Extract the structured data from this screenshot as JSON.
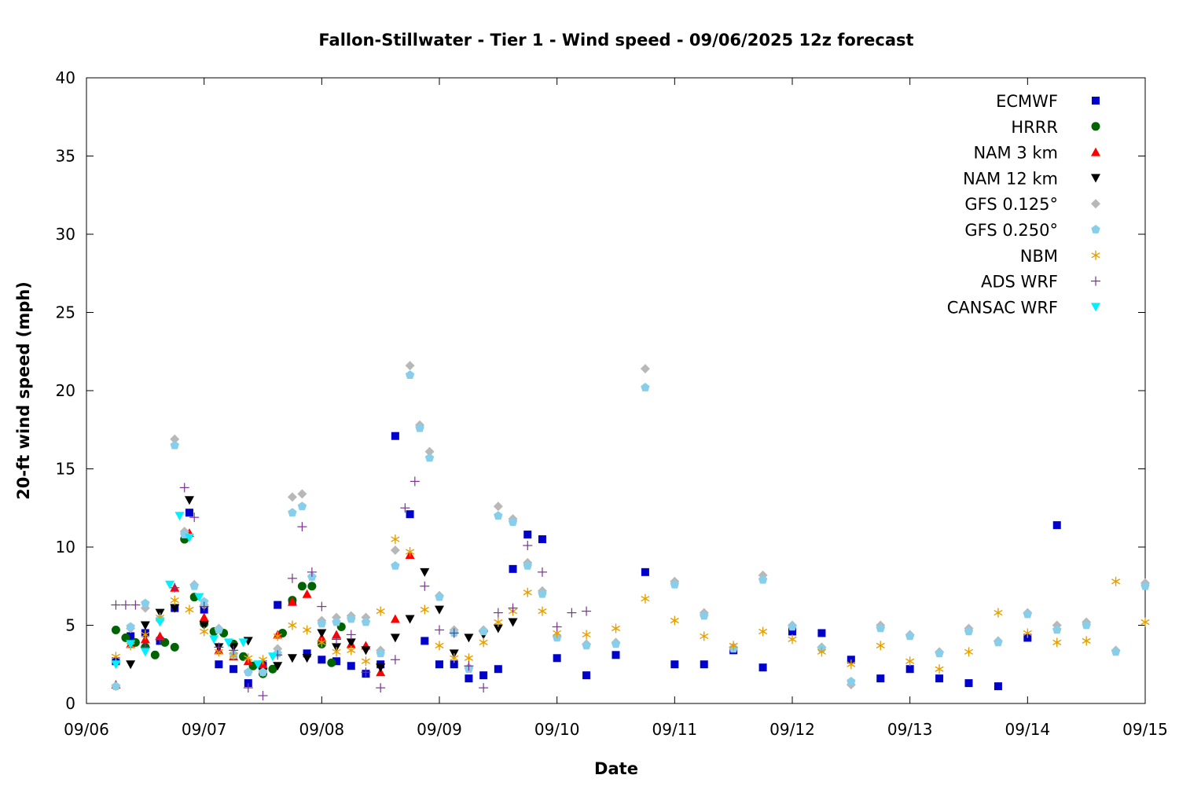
{
  "chart_data": {
    "type": "scatter",
    "title": "Fallon-Stillwater - Tier 1 - Wind speed - 09/06/2025 12z forecast",
    "xlabel": "Date",
    "ylabel": "20-ft wind speed (mph)",
    "xlim": [
      "2025-09-06T00:00",
      "2025-09-15T00:00"
    ],
    "ylim": [
      0,
      40
    ],
    "x_ticks": [
      "09/06",
      "09/07",
      "09/08",
      "09/09",
      "09/10",
      "09/11",
      "09/12",
      "09/13",
      "09/14",
      "09/15"
    ],
    "y_ticks": [
      0,
      5,
      10,
      15,
      20,
      25,
      30,
      35,
      40
    ],
    "grid": false,
    "legend_position": "top-right",
    "series": [
      {
        "name": "ECMWF",
        "marker": "square",
        "color": "#0000cc",
        "x": [
          "2025-09-06T06:00",
          "2025-09-06T09:00",
          "2025-09-06T12:00",
          "2025-09-06T15:00",
          "2025-09-06T18:00",
          "2025-09-06T21:00",
          "2025-09-07T00:00",
          "2025-09-07T03:00",
          "2025-09-07T06:00",
          "2025-09-07T09:00",
          "2025-09-07T12:00",
          "2025-09-07T15:00",
          "2025-09-07T18:00",
          "2025-09-07T21:00",
          "2025-09-08T00:00",
          "2025-09-08T03:00",
          "2025-09-08T06:00",
          "2025-09-08T09:00",
          "2025-09-08T12:00",
          "2025-09-08T15:00",
          "2025-09-08T18:00",
          "2025-09-08T21:00",
          "2025-09-09T00:00",
          "2025-09-09T03:00",
          "2025-09-09T06:00",
          "2025-09-09T09:00",
          "2025-09-09T12:00",
          "2025-09-09T15:00",
          "2025-09-09T18:00",
          "2025-09-09T21:00",
          "2025-09-10T00:00",
          "2025-09-10T06:00",
          "2025-09-10T12:00",
          "2025-09-10T18:00",
          "2025-09-11T00:00",
          "2025-09-11T06:00",
          "2025-09-11T12:00",
          "2025-09-11T18:00",
          "2025-09-12T00:00",
          "2025-09-12T06:00",
          "2025-09-12T12:00",
          "2025-09-12T18:00",
          "2025-09-13T00:00",
          "2025-09-13T06:00",
          "2025-09-13T12:00",
          "2025-09-13T18:00",
          "2025-09-14T00:00",
          "2025-09-14T06:00"
        ],
        "y": [
          2.7,
          4.3,
          4.5,
          4.0,
          6.1,
          12.2,
          6.0,
          2.5,
          2.2,
          1.3,
          2.5,
          6.3,
          6.5,
          3.2,
          2.8,
          2.7,
          2.4,
          1.9,
          2.5,
          17.1,
          12.1,
          4.0,
          2.5,
          2.5,
          1.6,
          1.8,
          2.2,
          8.6,
          10.8,
          10.5,
          2.9,
          1.8,
          3.1,
          8.4,
          2.5,
          2.5,
          3.4,
          2.3,
          4.6,
          4.5,
          2.8,
          1.6,
          2.2,
          1.6,
          1.3,
          1.1,
          4.2,
          11.4
        ]
      },
      {
        "name": "HRRR",
        "marker": "circle",
        "color": "#006400",
        "x": [
          "2025-09-06T06:00",
          "2025-09-06T08:00",
          "2025-09-06T10:00",
          "2025-09-06T12:00",
          "2025-09-06T14:00",
          "2025-09-06T16:00",
          "2025-09-06T18:00",
          "2025-09-06T20:00",
          "2025-09-06T22:00",
          "2025-09-07T00:00",
          "2025-09-07T02:00",
          "2025-09-07T04:00",
          "2025-09-07T06:00",
          "2025-09-07T08:00",
          "2025-09-07T10:00",
          "2025-09-07T12:00",
          "2025-09-07T14:00",
          "2025-09-07T16:00",
          "2025-09-07T18:00",
          "2025-09-07T20:00",
          "2025-09-07T22:00",
          "2025-09-08T00:00",
          "2025-09-08T02:00",
          "2025-09-08T04:00"
        ],
        "y": [
          4.7,
          4.2,
          3.9,
          3.6,
          3.1,
          3.9,
          3.6,
          10.5,
          6.8,
          5.1,
          4.6,
          4.5,
          3.8,
          3.0,
          2.4,
          1.9,
          2.2,
          4.5,
          6.6,
          7.5,
          7.5,
          3.8,
          2.6,
          4.9
        ]
      },
      {
        "name": "NAM 3 km",
        "marker": "triangle-up",
        "color": "#ff0000",
        "x": [
          "2025-09-06T06:00",
          "2025-09-06T09:00",
          "2025-09-06T12:00",
          "2025-09-06T15:00",
          "2025-09-06T18:00",
          "2025-09-06T21:00",
          "2025-09-07T00:00",
          "2025-09-07T03:00",
          "2025-09-07T06:00",
          "2025-09-07T09:00",
          "2025-09-07T12:00",
          "2025-09-07T15:00",
          "2025-09-07T18:00",
          "2025-09-07T21:00",
          "2025-09-08T00:00",
          "2025-09-08T03:00",
          "2025-09-08T06:00",
          "2025-09-08T09:00",
          "2025-09-08T12:00",
          "2025-09-08T15:00",
          "2025-09-08T18:00"
        ],
        "y": [
          1.2,
          3.8,
          4.1,
          4.3,
          7.4,
          10.9,
          5.5,
          3.4,
          3.0,
          2.7,
          2.5,
          4.4,
          6.5,
          7.0,
          4.2,
          4.4,
          3.8,
          3.7,
          2.0,
          5.4,
          9.5
        ]
      },
      {
        "name": "NAM 12 km",
        "marker": "triangle-down",
        "color": "#000000",
        "x": [
          "2025-09-06T09:00",
          "2025-09-06T12:00",
          "2025-09-06T15:00",
          "2025-09-06T18:00",
          "2025-09-06T21:00",
          "2025-09-07T00:00",
          "2025-09-07T03:00",
          "2025-09-07T06:00",
          "2025-09-07T09:00",
          "2025-09-07T12:00",
          "2025-09-07T15:00",
          "2025-09-07T18:00",
          "2025-09-07T21:00",
          "2025-09-08T00:00",
          "2025-09-08T03:00",
          "2025-09-08T06:00",
          "2025-09-08T09:00",
          "2025-09-08T12:00",
          "2025-09-08T15:00",
          "2025-09-08T18:00",
          "2025-09-08T21:00",
          "2025-09-09T00:00",
          "2025-09-09T03:00",
          "2025-09-09T06:00",
          "2025-09-09T09:00",
          "2025-09-09T12:00",
          "2025-09-09T15:00"
        ],
        "y": [
          2.5,
          5.0,
          5.8,
          6.1,
          13.0,
          5.0,
          3.6,
          3.6,
          4.0,
          2.0,
          2.4,
          2.9,
          2.9,
          4.5,
          3.6,
          3.9,
          3.4,
          2.3,
          4.2,
          5.4,
          8.4,
          6.0,
          3.2,
          4.2,
          4.4,
          4.8,
          5.2
        ]
      },
      {
        "name": "GFS 0.125°",
        "marker": "diamond",
        "color": "#b8b8b8",
        "x": [
          "2025-09-06T06:00",
          "2025-09-06T09:00",
          "2025-09-06T12:00",
          "2025-09-06T15:00",
          "2025-09-06T18:00",
          "2025-09-06T20:00",
          "2025-09-06T22:00",
          "2025-09-07T00:00",
          "2025-09-07T03:00",
          "2025-09-07T06:00",
          "2025-09-07T09:00",
          "2025-09-07T12:00",
          "2025-09-07T15:00",
          "2025-09-07T18:00",
          "2025-09-07T20:00",
          "2025-09-07T22:00",
          "2025-09-08T00:00",
          "2025-09-08T03:00",
          "2025-09-08T06:00",
          "2025-09-08T09:00",
          "2025-09-08T12:00",
          "2025-09-08T15:00",
          "2025-09-08T18:00",
          "2025-09-08T20:00",
          "2025-09-08T22:00",
          "2025-09-09T00:00",
          "2025-09-09T03:00",
          "2025-09-09T06:00",
          "2025-09-09T09:00",
          "2025-09-09T12:00",
          "2025-09-09T15:00",
          "2025-09-09T18:00",
          "2025-09-09T21:00",
          "2025-09-10T00:00",
          "2025-09-10T06:00",
          "2025-09-10T12:00",
          "2025-09-10T18:00",
          "2025-09-11T00:00",
          "2025-09-11T06:00",
          "2025-09-11T12:00",
          "2025-09-11T18:00",
          "2025-09-12T00:00",
          "2025-09-12T06:00",
          "2025-09-12T12:00",
          "2025-09-12T18:00",
          "2025-09-13T00:00",
          "2025-09-13T06:00",
          "2025-09-13T12:00",
          "2025-09-13T18:00",
          "2025-09-14T00:00",
          "2025-09-14T06:00",
          "2025-09-14T12:00",
          "2025-09-14T18:00",
          "2025-09-15T00:00"
        ],
        "y": [
          1.1,
          4.8,
          6.1,
          5.3,
          16.9,
          11.0,
          7.6,
          6.3,
          4.8,
          3.2,
          2.0,
          2.0,
          3.5,
          13.2,
          13.4,
          8.1,
          5.3,
          5.5,
          5.6,
          5.5,
          3.4,
          9.8,
          21.6,
          17.8,
          16.1,
          6.9,
          4.7,
          2.3,
          4.7,
          12.6,
          11.8,
          9.0,
          7.2,
          4.3,
          3.8,
          3.9,
          21.4,
          7.8,
          5.8,
          3.6,
          8.2,
          5.0,
          3.6,
          1.2,
          5.0,
          4.4,
          3.3,
          4.8,
          4.0,
          5.8,
          5.0,
          5.2,
          3.4,
          7.7
        ]
      },
      {
        "name": "GFS 0.250°",
        "marker": "pentagon",
        "color": "#87ceeb",
        "x": [
          "2025-09-06T06:00",
          "2025-09-06T09:00",
          "2025-09-06T12:00",
          "2025-09-06T15:00",
          "2025-09-06T18:00",
          "2025-09-06T20:00",
          "2025-09-06T22:00",
          "2025-09-07T00:00",
          "2025-09-07T03:00",
          "2025-09-07T06:00",
          "2025-09-07T09:00",
          "2025-09-07T12:00",
          "2025-09-07T15:00",
          "2025-09-07T18:00",
          "2025-09-07T20:00",
          "2025-09-07T22:00",
          "2025-09-08T00:00",
          "2025-09-08T03:00",
          "2025-09-08T06:00",
          "2025-09-08T09:00",
          "2025-09-08T12:00",
          "2025-09-08T15:00",
          "2025-09-08T18:00",
          "2025-09-08T20:00",
          "2025-09-08T22:00",
          "2025-09-09T00:00",
          "2025-09-09T03:00",
          "2025-09-09T06:00",
          "2025-09-09T09:00",
          "2025-09-09T12:00",
          "2025-09-09T15:00",
          "2025-09-09T18:00",
          "2025-09-09T21:00",
          "2025-09-10T00:00",
          "2025-09-10T06:00",
          "2025-09-10T12:00",
          "2025-09-10T18:00",
          "2025-09-11T00:00",
          "2025-09-11T06:00",
          "2025-09-11T12:00",
          "2025-09-11T18:00",
          "2025-09-12T00:00",
          "2025-09-12T06:00",
          "2025-09-12T12:00",
          "2025-09-12T18:00",
          "2025-09-13T00:00",
          "2025-09-13T06:00",
          "2025-09-13T12:00",
          "2025-09-13T18:00",
          "2025-09-14T00:00",
          "2025-09-14T06:00",
          "2025-09-14T12:00",
          "2025-09-14T18:00",
          "2025-09-15T00:00"
        ],
        "y": [
          1.1,
          4.9,
          6.4,
          5.4,
          16.5,
          10.8,
          7.5,
          6.5,
          4.7,
          3.1,
          2.0,
          2.0,
          3.2,
          12.2,
          12.6,
          8.1,
          5.1,
          5.2,
          5.4,
          5.2,
          3.2,
          8.8,
          21.0,
          17.6,
          15.7,
          6.8,
          4.5,
          2.2,
          4.6,
          12.0,
          11.6,
          8.8,
          7.0,
          4.2,
          3.7,
          3.8,
          20.2,
          7.6,
          5.6,
          3.5,
          7.9,
          4.9,
          3.5,
          1.4,
          4.8,
          4.3,
          3.2,
          4.6,
          3.9,
          5.7,
          4.7,
          5.0,
          3.3,
          7.5
        ]
      },
      {
        "name": "NBM",
        "marker": "asterisk",
        "color": "#e69f00",
        "x": [
          "2025-09-06T06:00",
          "2025-09-06T09:00",
          "2025-09-06T12:00",
          "2025-09-06T15:00",
          "2025-09-06T18:00",
          "2025-09-06T21:00",
          "2025-09-07T00:00",
          "2025-09-07T03:00",
          "2025-09-07T06:00",
          "2025-09-07T09:00",
          "2025-09-07T12:00",
          "2025-09-07T15:00",
          "2025-09-07T18:00",
          "2025-09-07T21:00",
          "2025-09-08T00:00",
          "2025-09-08T03:00",
          "2025-09-08T06:00",
          "2025-09-08T09:00",
          "2025-09-08T12:00",
          "2025-09-08T15:00",
          "2025-09-08T18:00",
          "2025-09-08T21:00",
          "2025-09-09T00:00",
          "2025-09-09T03:00",
          "2025-09-09T06:00",
          "2025-09-09T09:00",
          "2025-09-09T12:00",
          "2025-09-09T15:00",
          "2025-09-09T18:00",
          "2025-09-09T21:00",
          "2025-09-10T00:00",
          "2025-09-10T06:00",
          "2025-09-10T12:00",
          "2025-09-10T18:00",
          "2025-09-11T00:00",
          "2025-09-11T06:00",
          "2025-09-11T12:00",
          "2025-09-11T18:00",
          "2025-09-12T00:00",
          "2025-09-12T06:00",
          "2025-09-12T12:00",
          "2025-09-12T18:00",
          "2025-09-13T00:00",
          "2025-09-13T06:00",
          "2025-09-13T12:00",
          "2025-09-13T18:00",
          "2025-09-14T00:00",
          "2025-09-14T06:00",
          "2025-09-14T12:00",
          "2025-09-14T18:00",
          "2025-09-15T00:00"
        ],
        "y": [
          3.0,
          3.7,
          4.4,
          5.5,
          6.6,
          6.0,
          4.6,
          3.3,
          3.1,
          2.9,
          2.8,
          4.3,
          5.0,
          4.7,
          3.9,
          3.3,
          3.4,
          2.7,
          5.9,
          10.5,
          9.7,
          6.0,
          3.7,
          2.9,
          2.9,
          3.9,
          5.2,
          5.9,
          7.1,
          5.9,
          4.5,
          4.4,
          4.8,
          6.7,
          5.3,
          4.3,
          3.7,
          4.6,
          4.1,
          3.3,
          2.5,
          3.7,
          2.7,
          2.2,
          3.3,
          5.8,
          4.5,
          3.9,
          4.0,
          7.8,
          5.2
        ]
      },
      {
        "name": "ADS WRF",
        "marker": "plus",
        "color": "#7b3294",
        "x": [
          "2025-09-06T06:00",
          "2025-09-06T08:00",
          "2025-09-06T10:00",
          "2025-09-06T12:00",
          "2025-09-06T15:00",
          "2025-09-06T18:00",
          "2025-09-06T20:00",
          "2025-09-06T22:00",
          "2025-09-07T00:00",
          "2025-09-07T03:00",
          "2025-09-07T06:00",
          "2025-09-07T09:00",
          "2025-09-07T12:00",
          "2025-09-07T15:00",
          "2025-09-07T18:00",
          "2025-09-07T20:00",
          "2025-09-07T22:00",
          "2025-09-08T00:00",
          "2025-09-08T03:00",
          "2025-09-08T06:00",
          "2025-09-08T09:00",
          "2025-09-08T12:00",
          "2025-09-08T15:00",
          "2025-09-08T17:00",
          "2025-09-08T19:00",
          "2025-09-08T21:00",
          "2025-09-09T00:00",
          "2025-09-09T03:00",
          "2025-09-09T06:00",
          "2025-09-09T09:00",
          "2025-09-09T12:00",
          "2025-09-09T15:00",
          "2025-09-09T18:00",
          "2025-09-09T21:00",
          "2025-09-10T00:00",
          "2025-09-10T03:00",
          "2025-09-10T06:00"
        ],
        "y": [
          6.3,
          6.3,
          6.3,
          3.6,
          4.1,
          7.4,
          13.8,
          11.9,
          6.2,
          3.6,
          3.4,
          1.0,
          0.5,
          3.1,
          8.0,
          11.3,
          8.4,
          6.2,
          4.1,
          4.4,
          2.0,
          1.0,
          2.8,
          12.5,
          14.2,
          7.5,
          4.7,
          4.5,
          2.4,
          1.0,
          5.8,
          6.1,
          10.1,
          8.4,
          4.9,
          5.8,
          5.9
        ]
      },
      {
        "name": "CANSAC WRF",
        "marker": "triangle-down",
        "color": "#00f0ff",
        "x": [
          "2025-09-06T06:00",
          "2025-09-06T09:00",
          "2025-09-06T12:00",
          "2025-09-06T15:00",
          "2025-09-06T17:00",
          "2025-09-06T19:00",
          "2025-09-06T21:00",
          "2025-09-06T23:00",
          "2025-09-07T02:00",
          "2025-09-07T05:00",
          "2025-09-07T08:00",
          "2025-09-07T11:00",
          "2025-09-07T14:00"
        ],
        "y": [
          2.5,
          3.8,
          3.3,
          5.2,
          7.6,
          12.0,
          10.6,
          6.8,
          4.1,
          3.9,
          3.9,
          2.5,
          3.0
        ]
      }
    ]
  }
}
